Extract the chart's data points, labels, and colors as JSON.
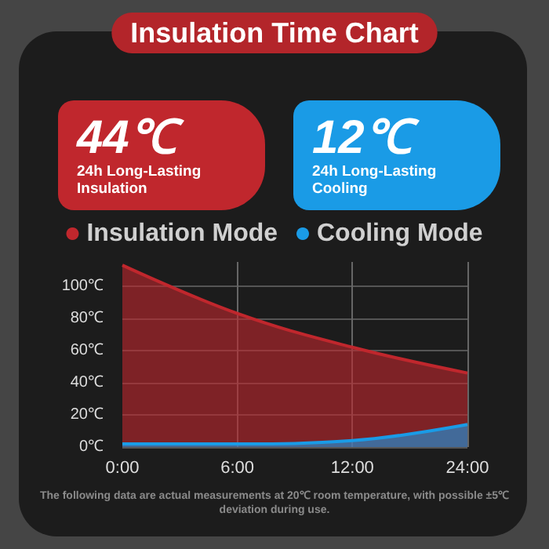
{
  "chart_data": {
    "type": "area",
    "title": "Insulation Time Chart",
    "categories": [
      "0:00",
      "6:00",
      "12:00",
      "24:00"
    ],
    "series": [
      {
        "name": "Insulation Mode",
        "color": "#c0272d",
        "values": [
          113,
          83,
          62,
          46
        ]
      },
      {
        "name": "Cooling Mode",
        "color": "#1a9be6",
        "values": [
          2,
          2,
          4,
          14
        ]
      }
    ],
    "ylim": [
      0,
      115
    ],
    "yticks": [
      {
        "value": 0,
        "label": "0℃"
      },
      {
        "value": 20,
        "label": "20℃"
      },
      {
        "value": 40,
        "label": "40℃"
      },
      {
        "value": 60,
        "label": "60℃"
      },
      {
        "value": 80,
        "label": "80℃"
      },
      {
        "value": 100,
        "label": "100℃"
      }
    ],
    "annotations": [
      "44℃",
      "24h Long-Lasting\nInsulation",
      "12℃",
      "24h Long-Lasting\nCooling",
      "The following data are actual measurements at 20℃ room temperature, with possible ±5℃\ndeviation during use."
    ],
    "grid": true,
    "legend": "top",
    "marker": "none",
    "line_style": "solid"
  }
}
